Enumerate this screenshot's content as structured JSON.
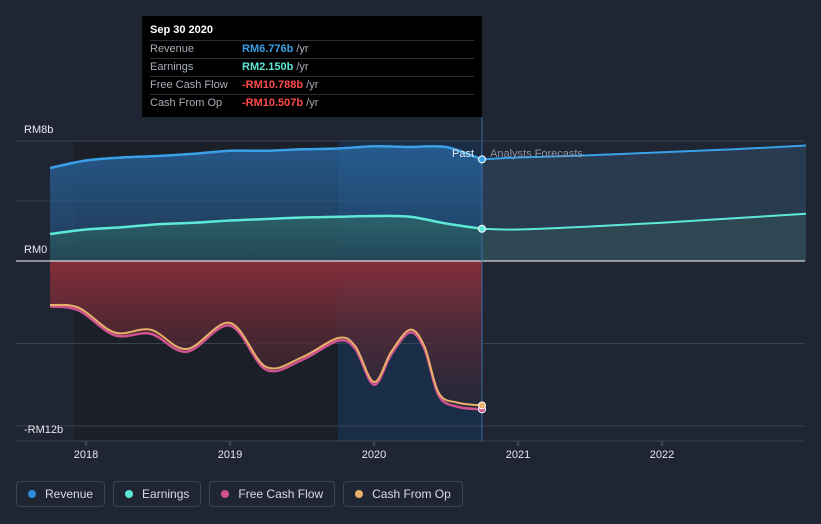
{
  "tooltip": {
    "date": "Sep 30 2020",
    "rows": [
      {
        "label": "Revenue",
        "value": "RM6.776b",
        "unit": "/yr",
        "color": "#3aa0e8"
      },
      {
        "label": "Earnings",
        "value": "RM2.150b",
        "unit": "/yr",
        "color": "#5ee8d8"
      },
      {
        "label": "Free Cash Flow",
        "value": "-RM10.788b",
        "unit": "/yr",
        "color": "#ff4a4a"
      },
      {
        "label": "Cash From Op",
        "value": "-RM10.507b",
        "unit": "/yr",
        "color": "#ff4a4a"
      }
    ]
  },
  "legend": [
    {
      "label": "Revenue",
      "color": "#2f8fde"
    },
    {
      "label": "Earnings",
      "color": "#5ee8d8"
    },
    {
      "label": "Free Cash Flow",
      "color": "#d0528f"
    },
    {
      "label": "Cash From Op",
      "color": "#e8b06a"
    }
  ],
  "chart_data": {
    "type": "area",
    "title": "",
    "ylabel": "",
    "xlabel": "",
    "ylim": [
      -12,
      8
    ],
    "xlim": [
      2017.7,
      2023.0
    ],
    "y_tick_labels": [
      {
        "value": 8,
        "label": "RM8b"
      },
      {
        "value": 0,
        "label": "RM0"
      },
      {
        "value": -12,
        "label": "-RM12b"
      }
    ],
    "x_ticks": [
      {
        "value": 2018,
        "label": "2018"
      },
      {
        "value": 2019,
        "label": "2019"
      },
      {
        "value": 2020,
        "label": "2020"
      },
      {
        "value": 2021,
        "label": "2021"
      },
      {
        "value": 2022,
        "label": "2022"
      }
    ],
    "past_label": "Past",
    "forecast_label": "Analysts Forecasts",
    "divider_x": 2020.75,
    "highlight_start_x": 2019.75,
    "series": [
      {
        "name": "Revenue",
        "color": "#3aa0e8",
        "x": [
          2017.75,
          2018.0,
          2018.25,
          2018.5,
          2018.75,
          2019.0,
          2019.25,
          2019.5,
          2019.75,
          2020.0,
          2020.25,
          2020.5,
          2020.75
        ],
        "y": [
          6.2,
          6.7,
          6.9,
          7.0,
          7.15,
          7.35,
          7.35,
          7.45,
          7.5,
          7.65,
          7.6,
          7.6,
          6.776
        ]
      },
      {
        "name": "Revenue Forecast",
        "color": "#3aa0e8",
        "x": [
          2020.75,
          2021.0,
          2021.5,
          2022.0,
          2022.5,
          2023.0
        ],
        "y": [
          6.776,
          6.9,
          7.05,
          7.25,
          7.45,
          7.7
        ]
      },
      {
        "name": "Earnings",
        "color": "#5ee8d8",
        "x": [
          2017.75,
          2018.0,
          2018.25,
          2018.5,
          2018.75,
          2019.0,
          2019.25,
          2019.5,
          2019.75,
          2020.0,
          2020.25,
          2020.5,
          2020.75
        ],
        "y": [
          1.8,
          2.1,
          2.25,
          2.45,
          2.55,
          2.7,
          2.8,
          2.9,
          2.95,
          3.0,
          2.95,
          2.5,
          2.15
        ]
      },
      {
        "name": "Earnings Forecast",
        "color": "#5ee8d8",
        "x": [
          2020.75,
          2021.0,
          2021.5,
          2022.0,
          2022.5,
          2023.0
        ],
        "y": [
          2.15,
          2.1,
          2.3,
          2.55,
          2.85,
          3.15
        ]
      },
      {
        "name": "Free Cash Flow",
        "color": "#d0528f",
        "x": [
          2017.75,
          2017.95,
          2018.2,
          2018.45,
          2018.7,
          2019.0,
          2019.25,
          2019.5,
          2019.75,
          2019.87,
          2020.0,
          2020.12,
          2020.25,
          2020.35,
          2020.45,
          2020.58,
          2020.75
        ],
        "y": [
          -3.3,
          -3.6,
          -5.4,
          -5.3,
          -6.6,
          -4.7,
          -7.9,
          -7.2,
          -5.8,
          -6.4,
          -9.0,
          -6.8,
          -5.2,
          -6.4,
          -9.8,
          -10.6,
          -10.788
        ]
      },
      {
        "name": "Cash From Op",
        "color": "#e8b06a",
        "x": [
          2017.75,
          2017.95,
          2018.2,
          2018.45,
          2018.7,
          2019.0,
          2019.25,
          2019.5,
          2019.75,
          2019.87,
          2020.0,
          2020.12,
          2020.25,
          2020.35,
          2020.45,
          2020.58,
          2020.75
        ],
        "y": [
          -3.2,
          -3.4,
          -5.2,
          -5.0,
          -6.4,
          -4.5,
          -7.7,
          -7.0,
          -5.6,
          -6.2,
          -8.8,
          -6.6,
          -5.0,
          -6.2,
          -9.6,
          -10.3,
          -10.507
        ]
      }
    ]
  }
}
